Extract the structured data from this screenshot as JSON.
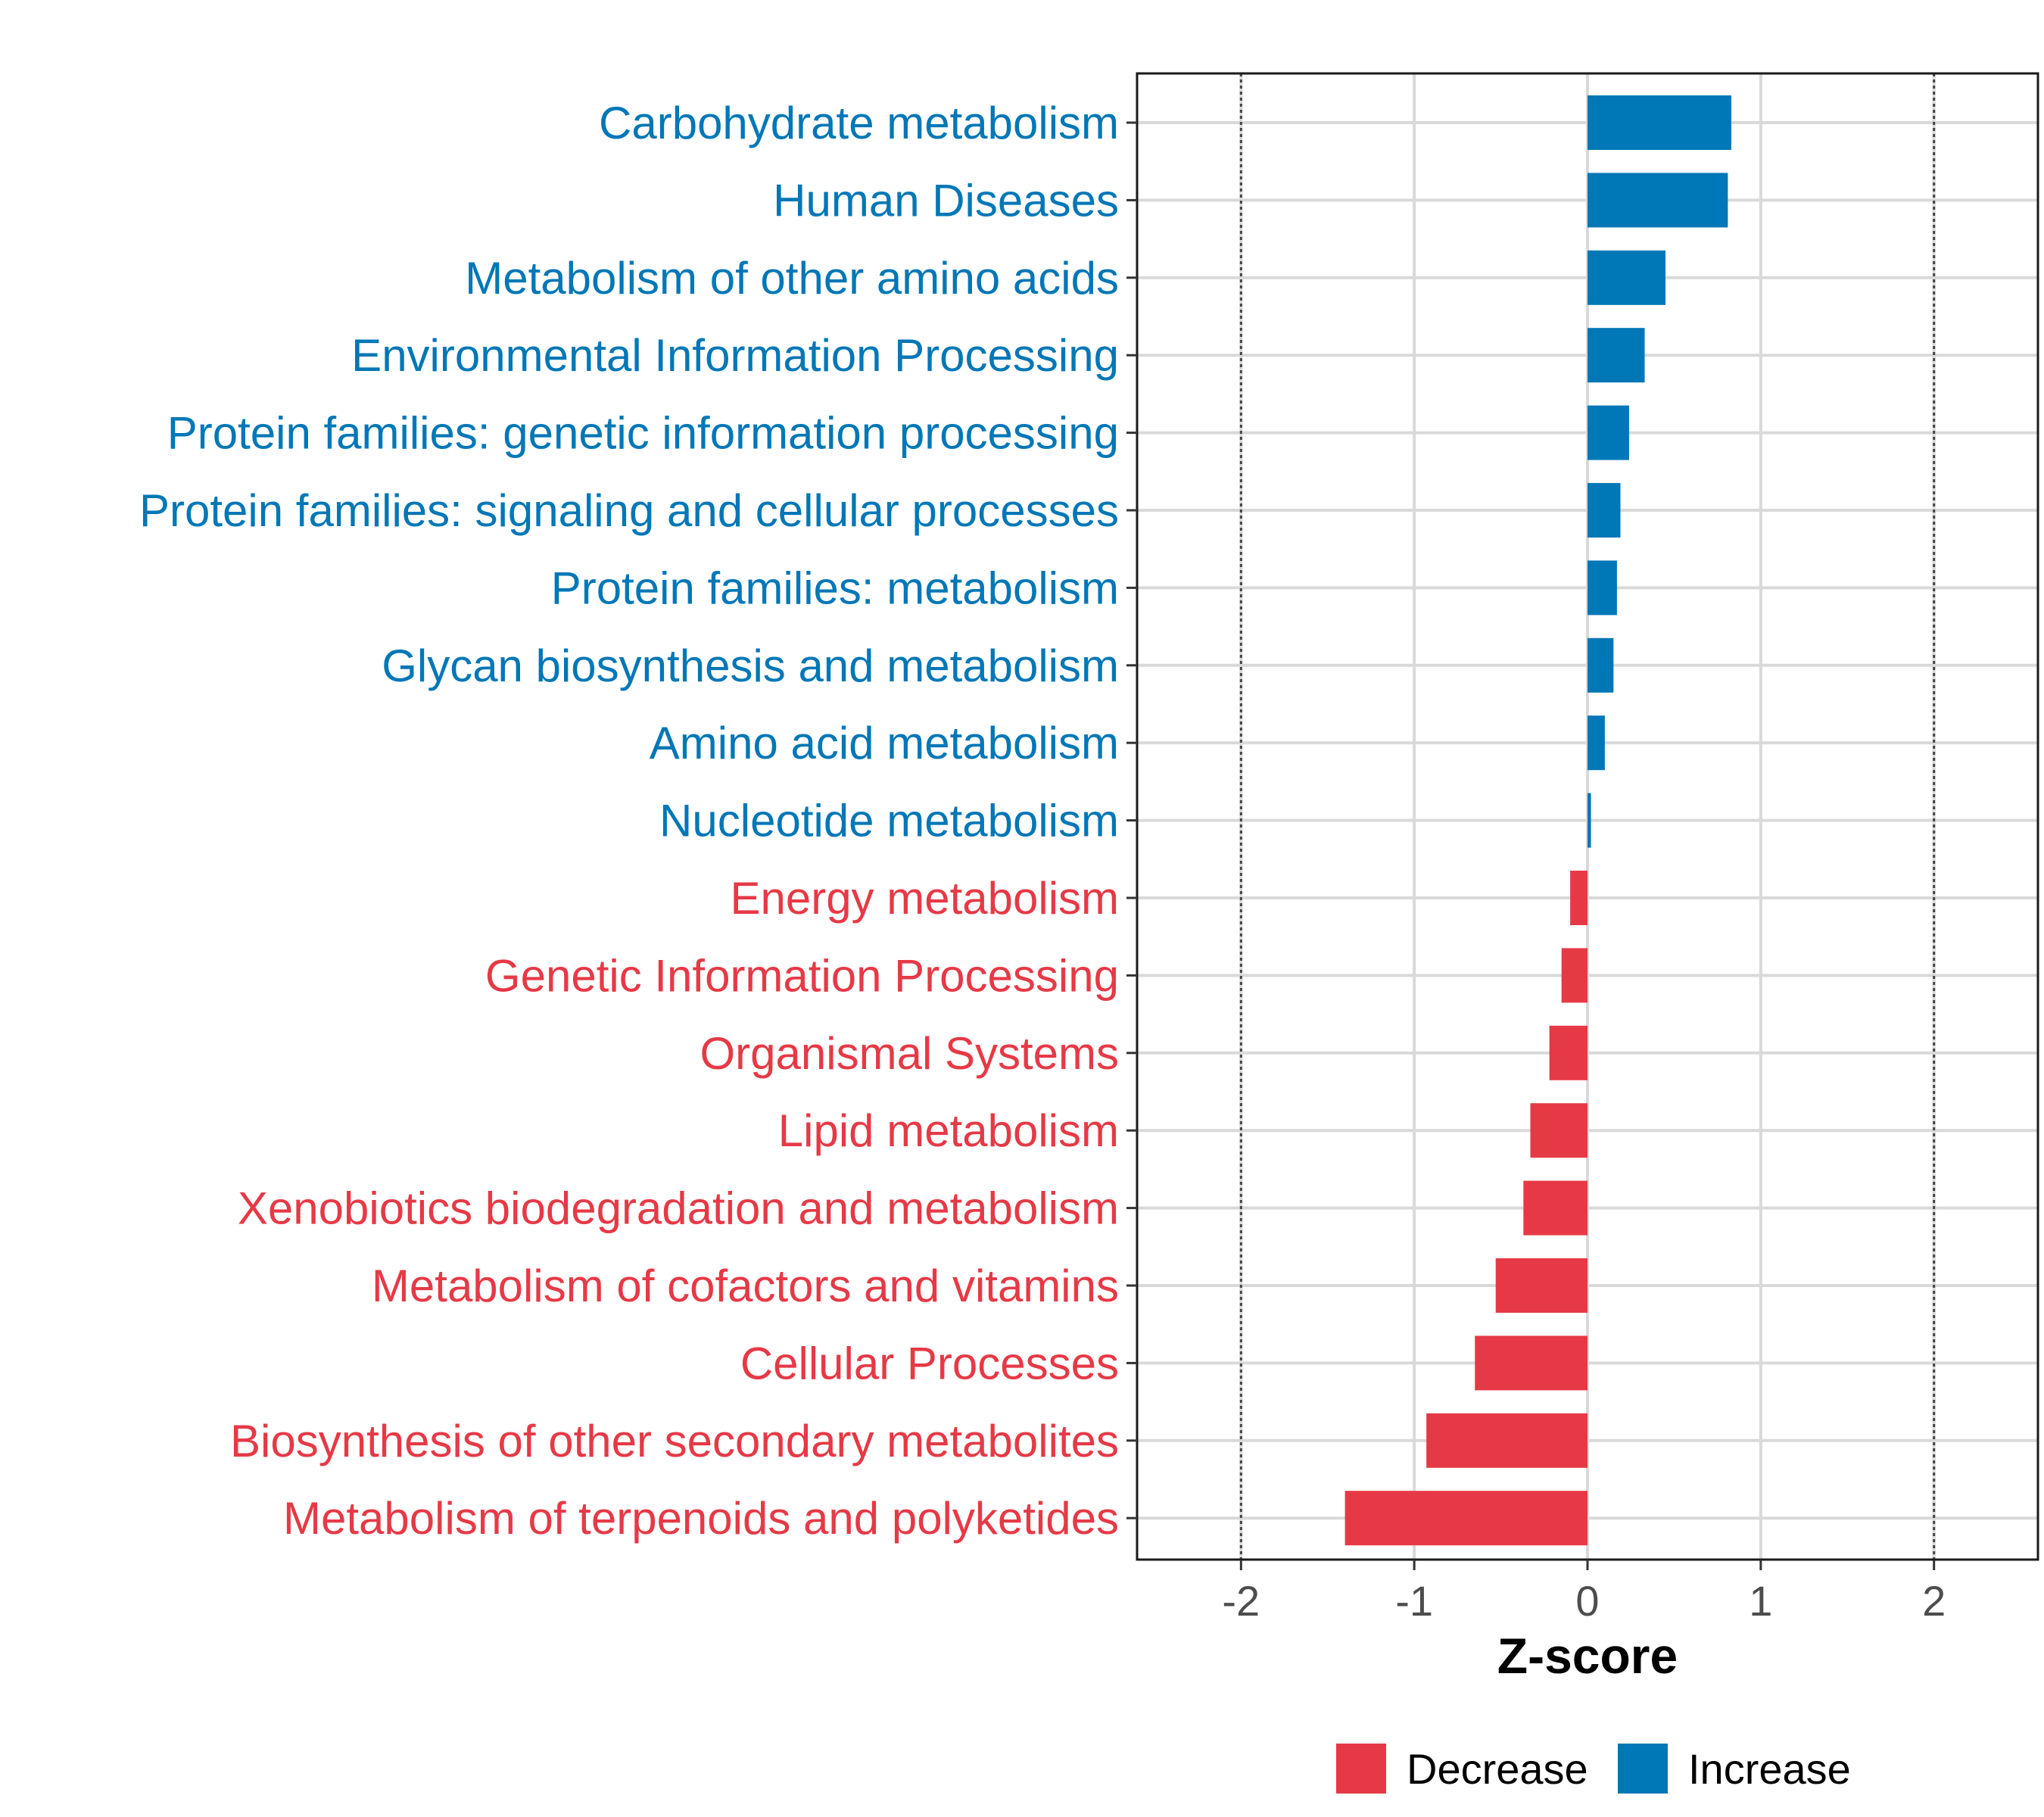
{
  "chart_data": {
    "type": "bar",
    "orientation": "horizontal",
    "title": "",
    "xlabel": "Z-score",
    "ylabel": "",
    "xlim": [
      -2.6,
      2.6
    ],
    "x_ticks": [
      -2,
      -1,
      0,
      1,
      2
    ],
    "x_tick_labels": [
      "-2",
      "-1",
      "0",
      "1",
      "2"
    ],
    "reference_lines": [
      -2,
      2
    ],
    "grid": true,
    "legend_position": "bottom",
    "legend": [
      {
        "key": "decrease",
        "label": "Decrease",
        "color": "#E63946"
      },
      {
        "key": "increase",
        "label": "Increase",
        "color": "#0077B6"
      }
    ],
    "categories": [
      "Carbohydrate metabolism",
      "Human Diseases",
      "Metabolism of other amino acids",
      "Environmental Information Processing",
      "Protein families: genetic information processing",
      "Protein families: signaling and cellular processes",
      "Protein families: metabolism",
      "Glycan biosynthesis and metabolism",
      "Amino acid metabolism",
      "Nucleotide metabolism",
      "Energy metabolism",
      "Genetic Information Processing",
      "Organismal Systems",
      "Lipid metabolism",
      "Xenobiotics biodegradation and metabolism",
      "Metabolism of cofactors and vitamins",
      "Cellular Processes",
      "Biosynthesis of other secondary metabolites",
      "Metabolism of terpenoids and polyketides"
    ],
    "values": [
      0.83,
      0.81,
      0.45,
      0.33,
      0.24,
      0.19,
      0.17,
      0.15,
      0.1,
      0.02,
      -0.1,
      -0.15,
      -0.22,
      -0.33,
      -0.37,
      -0.53,
      -0.65,
      -0.93,
      -1.4
    ],
    "groups": [
      "increase",
      "increase",
      "increase",
      "increase",
      "increase",
      "increase",
      "increase",
      "increase",
      "increase",
      "increase",
      "decrease",
      "decrease",
      "decrease",
      "decrease",
      "decrease",
      "decrease",
      "decrease",
      "decrease",
      "decrease"
    ]
  }
}
